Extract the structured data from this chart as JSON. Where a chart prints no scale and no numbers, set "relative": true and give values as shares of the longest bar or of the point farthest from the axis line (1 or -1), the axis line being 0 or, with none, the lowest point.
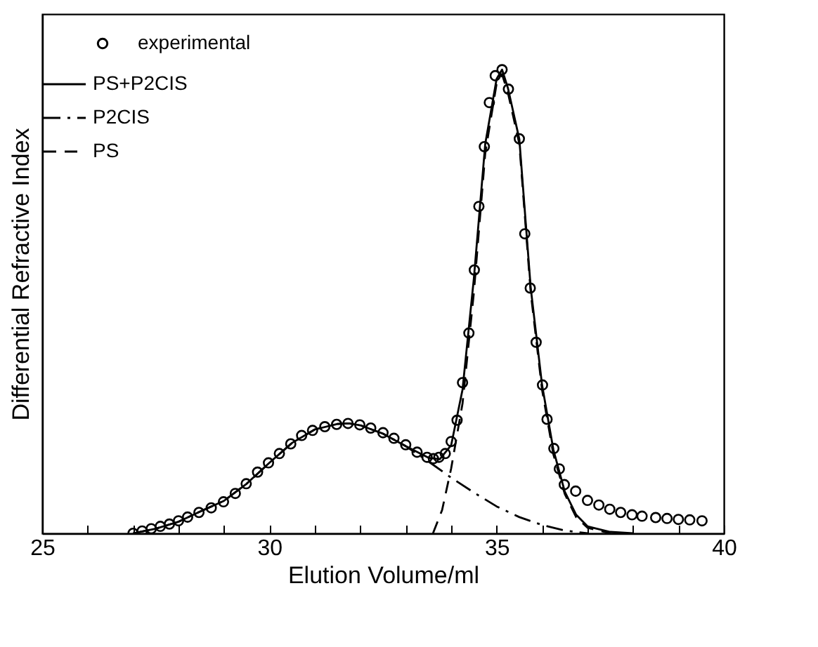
{
  "chart_data": {
    "type": "line",
    "xlabel": "Elution Volume/ml",
    "ylabel": "Differential Refractive Index",
    "relative": true,
    "legend": "top left",
    "xlim": [
      25,
      40
    ],
    "xticks": [
      25,
      {
        "value": 26,
        "label": null
      },
      {
        "value": 27,
        "label": null
      },
      {
        "value": 28,
        "label": null
      },
      {
        "value": 29,
        "label": null
      },
      30,
      {
        "value": 31,
        "label": null
      },
      {
        "value": 32,
        "label": null
      },
      {
        "value": 33,
        "label": null
      },
      {
        "value": 34,
        "label": null
      },
      35,
      {
        "value": 36,
        "label": null
      },
      {
        "value": 37,
        "label": null
      },
      {
        "value": 38,
        "label": null
      },
      {
        "value": 39,
        "label": null
      },
      40
    ],
    "series": [
      {
        "name": "experimental",
        "type": "scatter",
        "marker": "circle",
        "color": "#000000",
        "x": [
          27.0,
          27.2,
          27.4,
          27.6,
          27.8,
          28.0,
          28.2,
          28.45,
          28.72,
          28.99,
          29.25,
          29.49,
          29.74,
          29.98,
          30.22,
          30.47,
          30.71,
          30.95,
          31.22,
          31.48,
          31.73,
          31.99,
          32.23,
          32.5,
          32.74,
          33.0,
          33.25,
          33.47,
          33.61,
          33.73,
          33.87,
          34.0,
          34.13,
          34.25,
          34.39,
          34.51,
          34.61,
          34.73,
          34.84,
          34.97,
          35.12,
          35.26,
          35.5,
          35.62,
          35.74,
          35.87,
          36.01,
          36.11,
          36.26,
          36.38,
          36.49,
          36.74,
          37.0,
          37.25,
          37.49,
          37.73,
          37.98,
          38.2,
          38.5,
          38.75,
          39.0,
          39.25,
          39.52
        ],
        "values": [
          0.0,
          0.005,
          0.01,
          0.015,
          0.02,
          0.027,
          0.035,
          0.045,
          0.055,
          0.068,
          0.086,
          0.107,
          0.132,
          0.152,
          0.172,
          0.193,
          0.211,
          0.222,
          0.23,
          0.235,
          0.237,
          0.234,
          0.227,
          0.217,
          0.205,
          0.191,
          0.175,
          0.164,
          0.161,
          0.164,
          0.172,
          0.198,
          0.244,
          0.325,
          0.432,
          0.568,
          0.705,
          0.834,
          0.929,
          0.987,
          1.0,
          0.958,
          0.851,
          0.646,
          0.529,
          0.412,
          0.32,
          0.246,
          0.183,
          0.139,
          0.105,
          0.091,
          0.071,
          0.061,
          0.052,
          0.045,
          0.04,
          0.037,
          0.034,
          0.032,
          0.03,
          0.029,
          0.027
        ]
      },
      {
        "name": "PS+P2CIS",
        "line_style": "solid",
        "color": "#000000",
        "x": [
          27.0,
          27.5,
          28.0,
          28.5,
          29.0,
          29.5,
          30.0,
          30.5,
          31.0,
          31.5,
          31.75,
          32.0,
          32.5,
          33.0,
          33.5,
          33.75,
          34.0,
          34.25,
          34.5,
          34.75,
          35.0,
          35.12,
          35.25,
          35.5,
          35.75,
          36.0,
          36.25,
          36.5,
          36.75,
          37.0,
          37.5,
          38.0
        ],
        "values": [
          0,
          0.01,
          0.025,
          0.048,
          0.07,
          0.107,
          0.152,
          0.195,
          0.224,
          0.236,
          0.237,
          0.233,
          0.215,
          0.188,
          0.163,
          0.16,
          0.19,
          0.31,
          0.55,
          0.84,
          0.98,
          1.0,
          0.96,
          0.85,
          0.53,
          0.32,
          0.18,
          0.09,
          0.04,
          0.015,
          0.003,
          0
        ]
      },
      {
        "name": "P2CIS",
        "line_style": "dashdot",
        "color": "#000000",
        "x": [
          27.0,
          27.5,
          28.0,
          28.5,
          29.0,
          29.5,
          30.0,
          30.5,
          31.0,
          31.5,
          31.75,
          32.0,
          32.5,
          33.0,
          33.5,
          34.0,
          34.5,
          35.0,
          35.5,
          36.0,
          36.5,
          37.0
        ],
        "values": [
          0,
          0.01,
          0.025,
          0.048,
          0.07,
          0.107,
          0.152,
          0.195,
          0.224,
          0.236,
          0.237,
          0.233,
          0.215,
          0.188,
          0.155,
          0.12,
          0.088,
          0.058,
          0.035,
          0.018,
          0.006,
          0
        ]
      },
      {
        "name": "PS",
        "line_style": "dashed",
        "color": "#000000",
        "x": [
          33.6,
          33.8,
          34.0,
          34.25,
          34.5,
          34.75,
          35.0,
          35.12,
          35.25,
          35.5,
          35.75,
          36.0,
          36.25,
          36.5,
          36.75,
          37.0,
          37.5
        ],
        "values": [
          0,
          0.05,
          0.14,
          0.28,
          0.52,
          0.82,
          0.97,
          0.99,
          0.95,
          0.84,
          0.52,
          0.31,
          0.17,
          0.085,
          0.035,
          0.012,
          0
        ]
      }
    ]
  }
}
